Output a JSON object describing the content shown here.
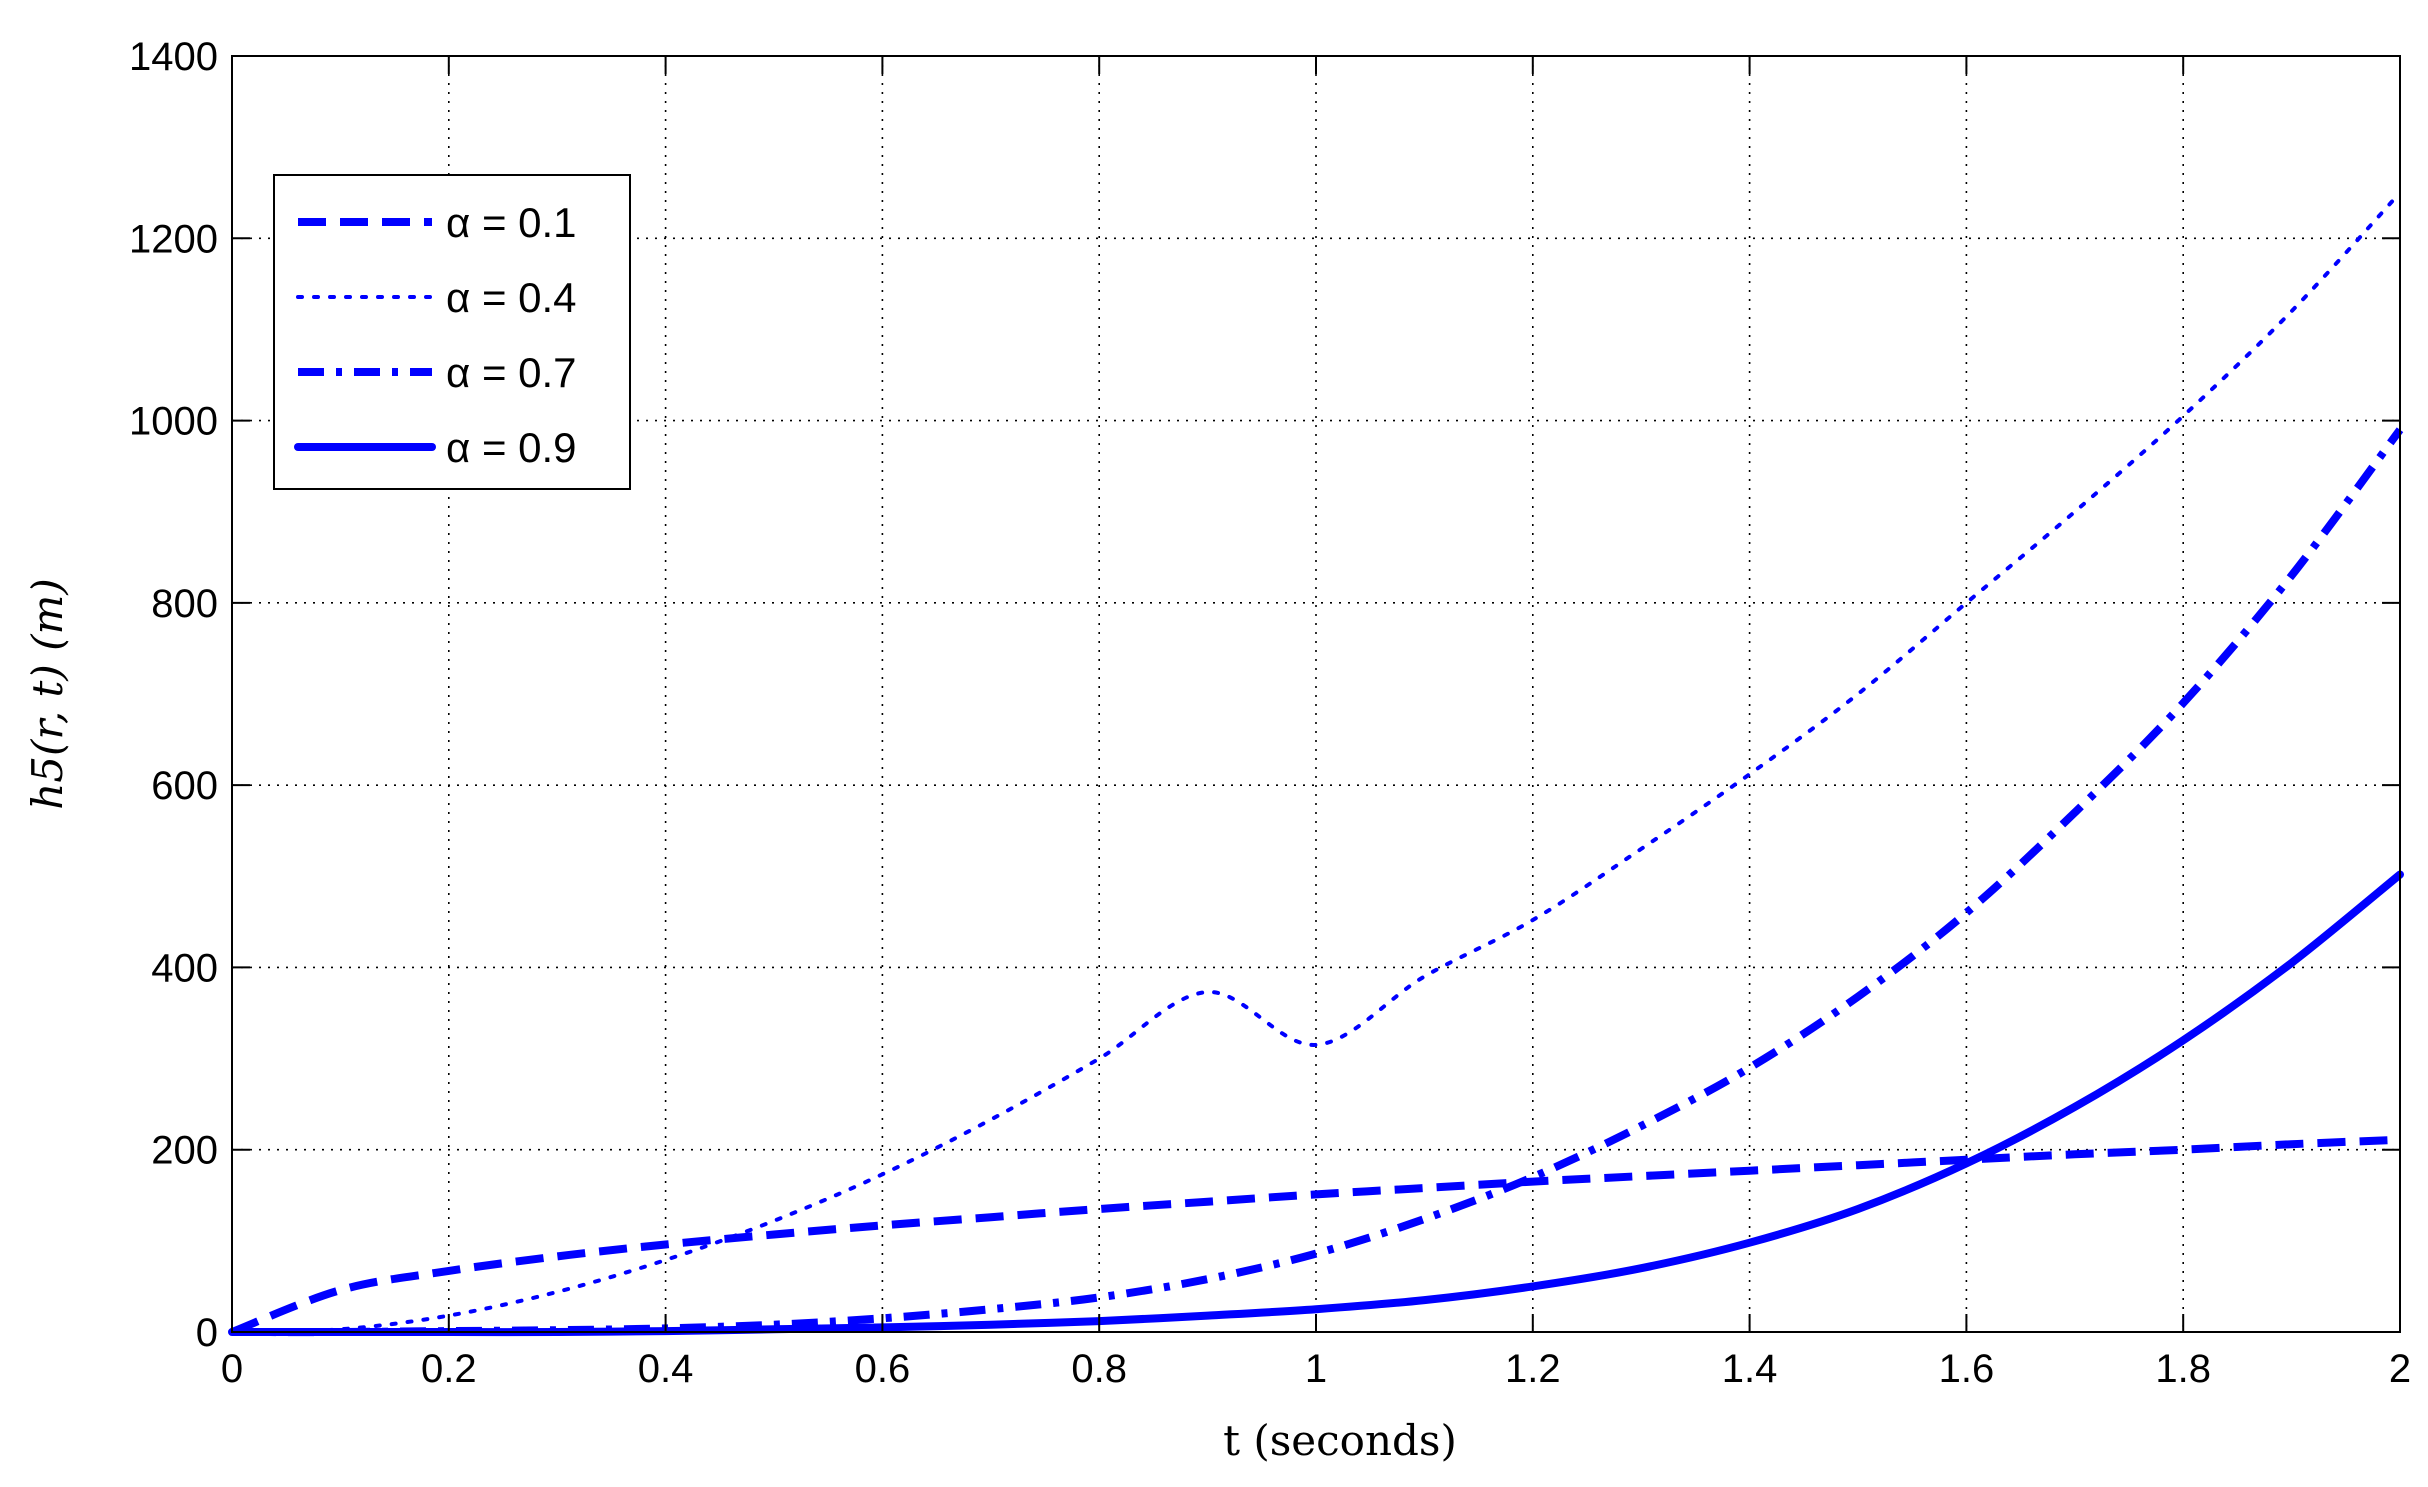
{
  "chart_data": {
    "type": "line",
    "title": "",
    "xlabel": "t (seconds)",
    "ylabel": "h5(r, t) (m)",
    "xlim": [
      0,
      2
    ],
    "ylim": [
      0,
      1400
    ],
    "xticks": [
      "0",
      "0.2",
      "0.4",
      "0.6",
      "0.8",
      "1",
      "1.2",
      "1.4",
      "1.6",
      "1.8",
      "2"
    ],
    "yticks": [
      "0",
      "200",
      "400",
      "600",
      "800",
      "1000",
      "1200",
      "1400"
    ],
    "grid": true,
    "legend_position": "top-left",
    "series_color": "#0000ff",
    "x": [
      0,
      0.1,
      0.2,
      0.3,
      0.4,
      0.5,
      0.6,
      0.7,
      0.8,
      0.9,
      1.0,
      1.1,
      1.2,
      1.3,
      1.4,
      1.5,
      1.6,
      1.7,
      1.8,
      1.9,
      2.0
    ],
    "series": [
      {
        "name": "α = 0.1",
        "line_style": "dashed",
        "values": [
          0,
          46,
          67,
          83,
          96,
          107,
          117,
          126,
          135,
          143,
          151,
          158,
          165,
          171,
          177,
          183,
          189,
          195,
          200,
          206,
          211
        ]
      },
      {
        "name": "α = 0.4",
        "line_style": "dotted",
        "values": [
          0,
          3,
          18,
          44,
          79,
          122,
          173,
          233,
          300,
          373,
          315,
          390,
          452,
          530,
          612,
          700,
          800,
          900,
          1005,
          1120,
          1250
        ]
      },
      {
        "name": "α = 0.7",
        "line_style": "dashdot",
        "values": [
          0,
          0,
          1,
          2,
          4,
          8,
          15,
          25,
          38,
          58,
          86,
          124,
          170,
          226,
          290,
          368,
          460,
          570,
          690,
          830,
          990
        ]
      },
      {
        "name": "α = 0.9",
        "line_style": "solid",
        "values": [
          0,
          0,
          0,
          0,
          1,
          3,
          5,
          8,
          12,
          18,
          25,
          35,
          50,
          70,
          98,
          135,
          185,
          247,
          320,
          405,
          502
        ]
      }
    ]
  }
}
